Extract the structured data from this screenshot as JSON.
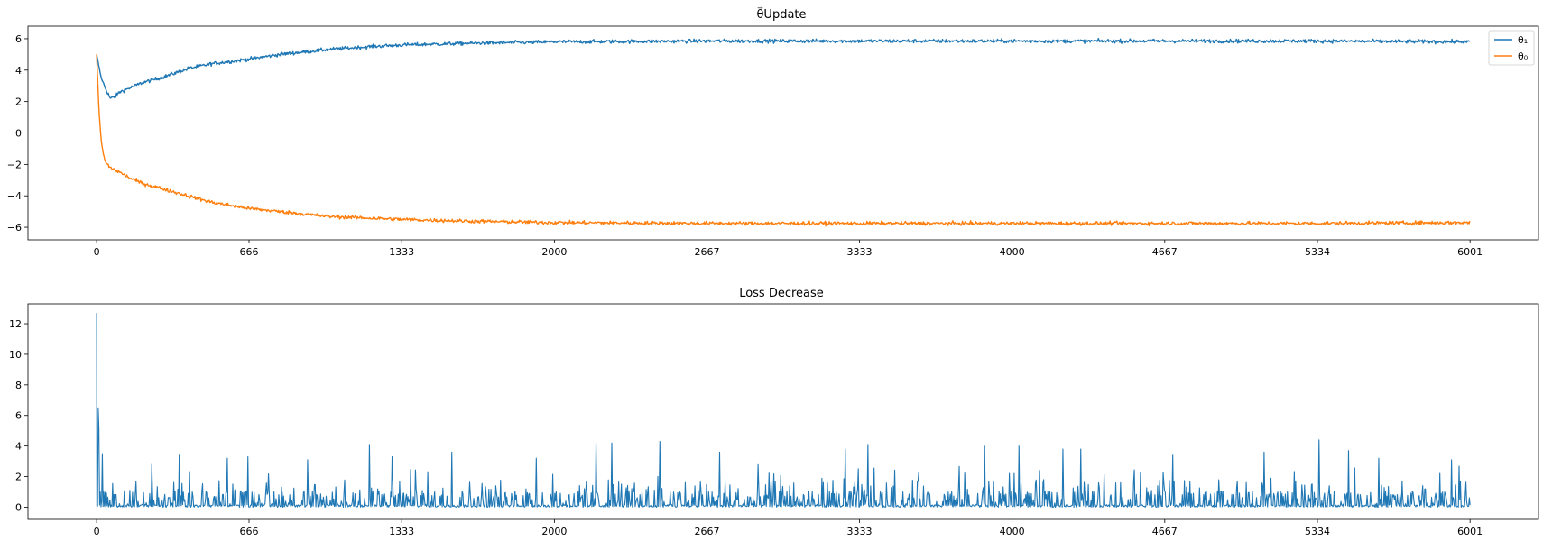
{
  "chart_data": [
    {
      "type": "line",
      "title": "θ⃗Update",
      "xlabel": "",
      "ylabel": "",
      "xlim": [
        -300,
        6300
      ],
      "ylim": [
        -6.8,
        6.8
      ],
      "xticks": [
        0,
        666,
        1333,
        2000,
        2667,
        3333,
        4000,
        4667,
        5334,
        6001
      ],
      "xtick_labels": [
        "0",
        "666",
        "1333",
        "2000",
        "2667",
        "3333",
        "4000",
        "4667",
        "5334",
        "6001"
      ],
      "yticks": [
        6,
        4,
        2,
        0,
        -2,
        -4,
        -6
      ],
      "ytick_labels": [
        "6",
        "4",
        "2",
        "0",
        "−2",
        "−4",
        "−6"
      ],
      "legend_position": "top-right",
      "series": [
        {
          "name": "θ₁",
          "color": "#1f77b4",
          "x": [
            0,
            20,
            40,
            60,
            80,
            100,
            150,
            200,
            300,
            400,
            500,
            666,
            800,
            1000,
            1200,
            1333,
            1600,
            2000,
            2667,
            3333,
            4000,
            4667,
            5334,
            6001
          ],
          "values": [
            5.0,
            3.5,
            2.8,
            2.2,
            2.3,
            2.6,
            2.9,
            3.2,
            3.6,
            4.1,
            4.4,
            4.7,
            5.0,
            5.3,
            5.5,
            5.6,
            5.7,
            5.8,
            5.85,
            5.85,
            5.85,
            5.85,
            5.85,
            5.8
          ]
        },
        {
          "name": "θ₀",
          "color": "#ff7f0e",
          "x": [
            0,
            10,
            20,
            30,
            40,
            60,
            100,
            150,
            200,
            300,
            400,
            500,
            666,
            800,
            1000,
            1333,
            1600,
            2000,
            2667,
            3333,
            4000,
            4667,
            5334,
            6001
          ],
          "values": [
            5.0,
            1.5,
            -0.5,
            -1.4,
            -1.9,
            -2.2,
            -2.5,
            -2.9,
            -3.2,
            -3.6,
            -4.0,
            -4.4,
            -4.8,
            -5.0,
            -5.3,
            -5.5,
            -5.6,
            -5.7,
            -5.75,
            -5.75,
            -5.75,
            -5.75,
            -5.75,
            -5.7
          ]
        }
      ]
    },
    {
      "type": "line",
      "title": "Loss Decrease",
      "xlabel": "",
      "ylabel": "",
      "xlim": [
        -300,
        6300
      ],
      "ylim": [
        -0.8,
        13.3
      ],
      "xticks": [
        0,
        666,
        1333,
        2000,
        2667,
        3333,
        4000,
        4667,
        5334,
        6001
      ],
      "xtick_labels": [
        "0",
        "666",
        "1333",
        "2000",
        "2667",
        "3333",
        "4000",
        "4667",
        "5334",
        "6001"
      ],
      "yticks": [
        12,
        10,
        8,
        6,
        4,
        2,
        0
      ],
      "ytick_labels": [
        "12",
        "10",
        "8",
        "6",
        "4",
        "2",
        "0"
      ],
      "series": [
        {
          "color": "#1f77b4",
          "initial_peak": {
            "x": 0,
            "y": 12.7
          },
          "spikes": [
            {
              "x": 5,
              "y": 6.5
            },
            {
              "x": 10,
              "y": 5.1
            },
            {
              "x": 25,
              "y": 3.5
            },
            {
              "x": 240,
              "y": 2.8
            },
            {
              "x": 360,
              "y": 3.4
            },
            {
              "x": 570,
              "y": 3.2
            },
            {
              "x": 660,
              "y": 3.3
            },
            {
              "x": 920,
              "y": 3.1
            },
            {
              "x": 1190,
              "y": 4.1
            },
            {
              "x": 1290,
              "y": 3.3
            },
            {
              "x": 1550,
              "y": 3.6
            },
            {
              "x": 1920,
              "y": 3.2
            },
            {
              "x": 2180,
              "y": 4.2
            },
            {
              "x": 2250,
              "y": 4.2
            },
            {
              "x": 2460,
              "y": 4.3
            },
            {
              "x": 2720,
              "y": 3.6
            },
            {
              "x": 3270,
              "y": 3.8
            },
            {
              "x": 3370,
              "y": 4.1
            },
            {
              "x": 3880,
              "y": 4.0
            },
            {
              "x": 4030,
              "y": 4.0
            },
            {
              "x": 4220,
              "y": 3.8
            },
            {
              "x": 4300,
              "y": 3.8
            },
            {
              "x": 4560,
              "y": 2.3
            },
            {
              "x": 4700,
              "y": 3.4
            },
            {
              "x": 5100,
              "y": 3.6
            },
            {
              "x": 5340,
              "y": 4.4
            },
            {
              "x": 5470,
              "y": 3.7
            },
            {
              "x": 5600,
              "y": 3.2
            },
            {
              "x": 5920,
              "y": 3.1
            }
          ],
          "typical_range": [
            0,
            1.5
          ]
        }
      ]
    }
  ]
}
